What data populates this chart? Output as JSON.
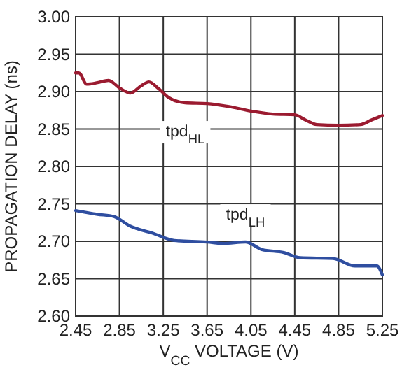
{
  "chart_data": {
    "type": "line",
    "xlabel": "V$_{CC}$ VOLTAGE (V)",
    "ylabel": "PROPAGATION DELAY (ns)",
    "xlim": [
      2.45,
      5.25
    ],
    "xticks": [
      2.45,
      2.85,
      3.25,
      3.65,
      4.05,
      4.45,
      4.85,
      5.25
    ],
    "ylim": [
      2.6,
      3.0
    ],
    "yticks": [
      {
        "value": 2.6,
        "label": "2.60"
      },
      {
        "value": 2.65,
        "label": "2.65"
      },
      {
        "value": 2.7,
        "label": "2.70"
      },
      {
        "value": 2.75,
        "label": "2.75"
      },
      {
        "value": 2.8,
        "label": "2.80"
      },
      {
        "value": 2.85,
        "label": "2.85"
      },
      {
        "value": 2.9,
        "label": "2.90"
      },
      {
        "value": 2.95,
        "label": "2.95"
      },
      {
        "value": 3.0,
        "label": "3.00"
      }
    ],
    "grid": true,
    "marker": "none",
    "line_style": "solid",
    "series": [
      {
        "name": "tpd$_{HL}$",
        "color": "#9b1b30",
        "x": [
          2.45,
          2.48,
          2.55,
          2.65,
          2.75,
          2.85,
          2.95,
          3.05,
          3.12,
          3.2,
          3.3,
          3.45,
          3.65,
          3.85,
          4.05,
          4.25,
          4.45,
          4.55,
          4.65,
          4.85,
          5.05,
          5.15,
          5.25
        ],
        "values": [
          2.925,
          2.925,
          2.91,
          2.912,
          2.915,
          2.905,
          2.898,
          2.908,
          2.913,
          2.905,
          2.892,
          2.885,
          2.884,
          2.88,
          2.874,
          2.87,
          2.869,
          2.862,
          2.856,
          2.855,
          2.856,
          2.862,
          2.868
        ]
      },
      {
        "name": "tpd$_{LH}$",
        "color": "#2f4ea0",
        "x": [
          2.45,
          2.65,
          2.8,
          2.95,
          3.15,
          3.35,
          3.65,
          3.8,
          4.0,
          4.15,
          4.35,
          4.5,
          4.8,
          5.0,
          5.2,
          5.25
        ],
        "values": [
          2.741,
          2.736,
          2.733,
          2.72,
          2.711,
          2.701,
          2.699,
          2.697,
          2.699,
          2.689,
          2.685,
          2.678,
          2.677,
          2.667,
          2.667,
          2.655
        ]
      }
    ]
  }
}
